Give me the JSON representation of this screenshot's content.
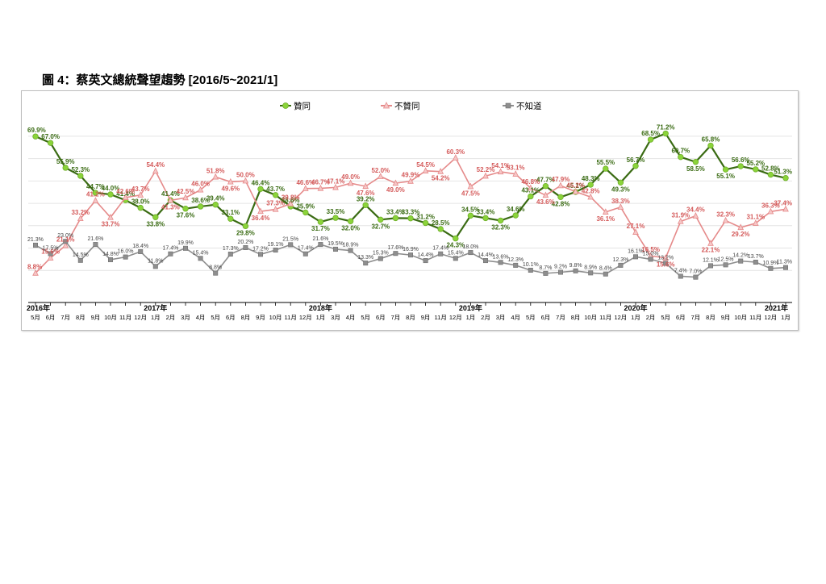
{
  "page": {
    "title": "圖 4：蔡英文總統聲望趨勢  [2016/5~2021/1]"
  },
  "chart_data": {
    "type": "line",
    "title": "圖 4：蔡英文總統聲望趨勢  [2016/5~2021/1]",
    "legend_position": "top",
    "grid": "horizontal",
    "colors": {
      "approve": "#3a6b13",
      "approve_marker": "#8bd43a",
      "disapprove": "#e58a8a",
      "unknown": "#8e8e8e"
    },
    "x": [
      "5月",
      "6月",
      "7月",
      "8月",
      "9月",
      "10月",
      "11月",
      "12月",
      "1月",
      "2月",
      "3月",
      "4月",
      "5月",
      "6月",
      "8月",
      "9月",
      "10月",
      "11月",
      "12月",
      "1月",
      "3月",
      "4月",
      "5月",
      "6月",
      "7月",
      "8月",
      "9月",
      "11月",
      "12月",
      "1月",
      "2月",
      "3月",
      "4月",
      "5月",
      "6月",
      "7月",
      "8月",
      "10月",
      "11月",
      "12月",
      "1月",
      "2月",
      "5月",
      "6月",
      "7月",
      "8月",
      "9月",
      "10月",
      "11月",
      "12月",
      "1月"
    ],
    "year_labels": [
      {
        "label": "2016年",
        "index": 0
      },
      {
        "label": "2017年",
        "index": 8
      },
      {
        "label": "2018年",
        "index": 19
      },
      {
        "label": "2019年",
        "index": 29
      },
      {
        "label": "2020年",
        "index": 40
      },
      {
        "label": "2021年",
        "index": 50
      }
    ],
    "series": [
      {
        "name": "贊同",
        "values": [
          69.9,
          67.0,
          55.9,
          52.3,
          44.7,
          44.0,
          41.4,
          38.0,
          33.8,
          41.4,
          37.6,
          38.6,
          39.4,
          33.1,
          29.8,
          46.4,
          43.7,
          38.6,
          35.9,
          31.7,
          33.5,
          32.0,
          39.2,
          32.7,
          33.4,
          33.3,
          31.2,
          28.5,
          24.3,
          34.5,
          33.4,
          32.3,
          34.6,
          43.1,
          47.7,
          42.8,
          45.1,
          48.3,
          55.5,
          49.3,
          56.7,
          68.5,
          71.2,
          60.7,
          58.5,
          65.8,
          55.1,
          56.6,
          55.2,
          52.8,
          51.3
        ],
        "labels": [
          "69.9%",
          "67.0%",
          "55.9%",
          "52.3%",
          "44.7%",
          "44.0%",
          "41.4%",
          "38.0%",
          "33.8%",
          "41.4%",
          "37.6%",
          "38.6%",
          "39.4%",
          "33.1%",
          "29.8%",
          "46.4%",
          "43.7%",
          "38.6%",
          "35.9%",
          "31.7%",
          "33.5%",
          "32.0%",
          "39.2%",
          "32.7%",
          "33.4%",
          "33.3%",
          "31.2%",
          "28.5%",
          "24.3%",
          "34.5%",
          "33.4%",
          "32.3%",
          "34.6%",
          "43.1%",
          "47.7%",
          "42.8%",
          "45.1%",
          "48.3%",
          "55.5%",
          "49.3%",
          "56.7%",
          "68.5%",
          "71.2%",
          "60.7%",
          "58.5%",
          "65.8%",
          "55.1%",
          "56.6%",
          "55.2%",
          "52.8%",
          "51.3%"
        ]
      },
      {
        "name": "不贊同",
        "values": [
          8.8,
          15.6,
          21.1,
          33.2,
          41.2,
          33.7,
          42.6,
          43.7,
          54.4,
          41.3,
          42.5,
          46.0,
          51.8,
          49.6,
          50.0,
          36.4,
          37.3,
          39.8,
          46.6,
          46.7,
          47.1,
          49.0,
          47.6,
          52.0,
          49.0,
          49.9,
          54.5,
          54.2,
          60.3,
          47.5,
          52.2,
          54.1,
          53.1,
          46.8,
          43.6,
          47.9,
          45.2,
          42.8,
          36.1,
          38.3,
          27.1,
          16.5,
          15.6,
          31.9,
          34.4,
          22.1,
          32.3,
          29.2,
          31.1,
          36.3,
          37.4
        ],
        "labels": [
          "8.8%",
          "15.6%",
          "21.1%",
          "33.2%",
          "41.2%",
          "33.7%",
          "42.6%",
          "43.7%",
          "54.4%",
          "41.3%",
          "42.5%",
          "46.0%",
          "51.8%",
          "49.6%",
          "50.0%",
          "36.4%",
          "37.3%",
          "39.8%",
          "46.6%",
          "46.7%",
          "47.1%",
          "49.0%",
          "47.6%",
          "52.0%",
          "49.0%",
          "49.9%",
          "54.5%",
          "54.2%",
          "60.3%",
          "47.5%",
          "52.2%",
          "54.1%",
          "53.1%",
          "46.8%",
          "43.6%",
          "47.9%",
          "45.2%",
          "42.8%",
          "36.1%",
          "38.3%",
          "27.1%",
          "16.5%",
          "15.6%",
          "31.9%",
          "34.4%",
          "22.1%",
          "32.3%",
          "29.2%",
          "31.1%",
          "36.3%",
          "37.4%"
        ]
      },
      {
        "name": "不知道",
        "values": [
          21.3,
          17.5,
          23.0,
          14.5,
          21.6,
          14.8,
          16.0,
          18.4,
          11.8,
          17.4,
          19.9,
          15.4,
          8.8,
          17.3,
          20.2,
          17.2,
          19.1,
          21.5,
          17.4,
          21.6,
          19.5,
          18.9,
          13.3,
          15.3,
          17.6,
          16.9,
          14.4,
          17.4,
          15.4,
          18.0,
          14.4,
          13.6,
          12.3,
          10.1,
          8.7,
          9.2,
          9.8,
          8.9,
          8.4,
          12.3,
          16.1,
          15.0,
          13.2,
          7.4,
          7.0,
          12.1,
          12.5,
          14.2,
          13.7,
          10.9,
          11.3
        ],
        "labels": [
          "21.3%",
          "17.5%",
          "23.0%",
          "14.5%",
          "21.6%",
          "14.8%",
          "16.0%",
          "18.4%",
          "11.8%",
          "17.4%",
          "19.9%",
          "15.4%",
          "8.8%",
          "17.3%",
          "20.2%",
          "17.2%",
          "19.1%",
          "21.5%",
          "17.4%",
          "21.6%",
          "19.5%",
          "18.9%",
          "13.3%",
          "15.3%",
          "17.6%",
          "16.9%",
          "14.4%",
          "17.4%",
          "15.4%",
          "18.0%",
          "14.4%",
          "13.6%",
          "12.3%",
          "10.1%",
          "8.7%",
          "9.2%",
          "9.8%",
          "8.9%",
          "8.4%",
          "12.3%",
          "16.1%",
          "15.0%",
          "13.2%",
          "7.4%",
          "7.0%",
          "12.1%",
          "12.5%",
          "14.2%",
          "13.7%",
          "10.9%",
          "11.3%"
        ]
      }
    ]
  }
}
